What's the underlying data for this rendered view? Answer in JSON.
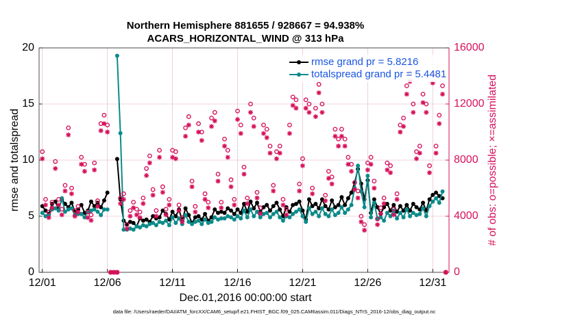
{
  "chart_data": {
    "type": "line",
    "title": "Northern Hemisphere 881655 / 928667 = 94.938%",
    "subtitle": "ACARS_HORIZONTAL_WIND @ 313 hPa",
    "xlabel": "Dec.01,2016 00:00:00 start",
    "ylabel": "rmse and totalspread",
    "y2label": "# of obs: o=possible; ×=assimilated",
    "footnote": "data file: /Users/raeder/DAI/ATM_forcXX/CAM6_setup/f.e21.FHIST_BGC.f09_025.CAM6assim.011/Diags_NTrS_2016-12/obs_diag_output.nc",
    "legend": "upper right",
    "grid": true,
    "xlim": [
      -0.25,
      31.25
    ],
    "xticks": [
      {
        "value": 0,
        "label": "12/01"
      },
      {
        "value": 5,
        "label": "12/06"
      },
      {
        "value": 10,
        "label": "12/11"
      },
      {
        "value": 15,
        "label": "12/16"
      },
      {
        "value": 20,
        "label": "12/21"
      },
      {
        "value": 25,
        "label": "12/26"
      },
      {
        "value": 30,
        "label": "12/31"
      }
    ],
    "ylim": [
      0,
      20
    ],
    "yticks": [
      0,
      5,
      10,
      15,
      20
    ],
    "y2lim": [
      0,
      16000
    ],
    "y2ticks": [
      0,
      4000,
      8000,
      12000,
      16000
    ],
    "x": [
      0,
      0.25,
      0.5,
      0.75,
      1,
      1.25,
      1.5,
      1.75,
      2,
      2.25,
      2.5,
      2.75,
      3,
      3.25,
      3.5,
      3.75,
      4,
      4.25,
      4.5,
      4.75,
      5,
      5.25,
      5.5,
      5.75,
      6,
      6.25,
      6.5,
      6.75,
      7,
      7.25,
      7.5,
      7.75,
      8,
      8.25,
      8.5,
      8.75,
      9,
      9.25,
      9.5,
      9.75,
      10,
      10.25,
      10.5,
      10.75,
      11,
      11.25,
      11.5,
      11.75,
      12,
      12.25,
      12.5,
      12.75,
      13,
      13.25,
      13.5,
      13.75,
      14,
      14.25,
      14.5,
      14.75,
      15,
      15.25,
      15.5,
      15.75,
      16,
      16.25,
      16.5,
      16.75,
      17,
      17.25,
      17.5,
      17.75,
      18,
      18.25,
      18.5,
      18.75,
      19,
      19.25,
      19.5,
      19.75,
      20,
      20.25,
      20.5,
      20.75,
      21,
      21.25,
      21.5,
      21.75,
      22,
      22.25,
      22.5,
      22.75,
      23,
      23.25,
      23.5,
      23.75,
      24,
      24.25,
      24.5,
      24.75,
      25,
      25.25,
      25.5,
      25.75,
      26,
      26.25,
      26.5,
      26.75,
      27,
      27.25,
      27.5,
      27.75,
      28,
      28.25,
      28.5,
      28.75,
      29,
      29.25,
      29.5,
      29.75,
      30,
      30.25,
      30.5,
      30.75,
      31
    ],
    "series": [
      {
        "name": "rmse grand pr = 5.8216",
        "color": "#000000",
        "marker": "dot",
        "values": [
          5.9,
          5.5,
          5.2,
          6.1,
          6.3,
          5.6,
          6.5,
          6.1,
          5.8,
          6.2,
          5.4,
          5.6,
          6.0,
          5.3,
          5.5,
          6.3,
          5.9,
          6.2,
          5.8,
          6.4,
          7.1,
          null,
          null,
          10.1,
          6.5,
          4.6,
          4.3,
          4.5,
          4.4,
          4.1,
          4.8,
          4.6,
          4.7,
          4.5,
          5.0,
          4.8,
          4.9,
          5.5,
          5.2,
          4.7,
          5.4,
          5.0,
          5.6,
          4.6,
          5.7,
          5.1,
          4.4,
          4.9,
          5.0,
          4.7,
          5.2,
          4.6,
          4.9,
          5.6,
          5.3,
          5.4,
          5.3,
          5.7,
          5.5,
          5.2,
          5.6,
          5.3,
          6.1,
          5.4,
          6.3,
          5.7,
          6.2,
          5.4,
          5.8,
          6.0,
          5.5,
          5.9,
          6.2,
          5.6,
          5.0,
          5.8,
          5.4,
          6.0,
          6.1,
          6.3,
          5.5,
          4.7,
          6.5,
          5.9,
          6.1,
          5.7,
          6.5,
          5.9,
          5.6,
          6.4,
          5.8,
          6.0,
          6.7,
          6.0,
          6.6,
          7.1,
          8.0,
          9.2,
          7.9,
          6.5,
          8.2,
          5.3,
          6.5,
          5.8,
          5.2,
          5.8,
          6.1,
          5.5,
          6.0,
          5.4,
          5.9,
          5.5,
          6.0,
          5.5,
          6.1,
          5.8,
          5.6,
          6.2,
          5.5,
          6.5,
          6.9,
          7.1,
          6.8,
          6.6,
          null
        ]
      },
      {
        "name": "totalspread grand pr = 5.4481",
        "color": "#0b8a8a",
        "marker": "dot",
        "values": [
          5.3,
          5.0,
          5.1,
          5.6,
          5.7,
          5.5,
          6.6,
          5.4,
          5.6,
          5.7,
          5.1,
          5.2,
          5.2,
          4.9,
          5.4,
          5.5,
          5.6,
          5.4,
          5.1,
          5.6,
          5.6,
          null,
          null,
          19.3,
          12.4,
          3.8,
          3.8,
          3.9,
          3.8,
          4.1,
          4.0,
          4.2,
          4.1,
          4.3,
          4.4,
          4.2,
          4.5,
          4.4,
          4.6,
          4.2,
          4.9,
          4.4,
          4.8,
          4.3,
          5.1,
          4.5,
          4.3,
          4.5,
          4.6,
          4.3,
          4.7,
          4.4,
          4.5,
          4.9,
          4.7,
          4.8,
          4.8,
          5.0,
          4.9,
          4.7,
          5.0,
          4.8,
          5.5,
          4.9,
          5.6,
          5.0,
          5.4,
          4.9,
          5.2,
          5.3,
          4.9,
          5.2,
          5.4,
          4.9,
          4.6,
          5.0,
          4.9,
          5.2,
          5.4,
          5.6,
          5.0,
          4.5,
          5.7,
          5.2,
          5.4,
          5.0,
          5.7,
          5.2,
          5.0,
          5.6,
          5.1,
          5.3,
          5.8,
          5.3,
          5.6,
          6.0,
          7.5,
          9.5,
          7.2,
          5.8,
          8.6,
          4.9,
          6.2,
          4.8,
          4.9,
          4.6,
          5.3,
          5.0,
          5.5,
          4.8,
          5.3,
          4.9,
          5.6,
          5.0,
          5.3,
          5.1,
          5.2,
          5.7,
          5.0,
          5.9,
          6.3,
          6.6,
          6.2,
          7.2,
          null
        ]
      },
      {
        "axis": "y2",
        "color": "#d6105a",
        "marker": "o",
        "values": [
          8600,
          5200,
          4300,
          5000,
          7900,
          5200,
          4500,
          6200,
          10300,
          6000,
          4400,
          4700,
          8200,
          7700,
          4300,
          4100,
          7800,
          5100,
          10600,
          11200,
          10500,
          0,
          0,
          0,
          5300,
          5600,
          3400,
          4400,
          5000,
          4500,
          4300,
          5300,
          7400,
          8300,
          5900,
          4400,
          8700,
          6100,
          4500,
          5200,
          8700,
          8600,
          4800,
          3900,
          10300,
          11100,
          6500,
          4700,
          10600,
          10000,
          5600,
          5000,
          11000,
          11400,
          7000,
          5000,
          9500,
          8700,
          6600,
          5200,
          11500,
          10500,
          7500,
          5300,
          12000,
          11000,
          5700,
          4600,
          10500,
          10200,
          9000,
          6200,
          8600,
          9000,
          5200,
          4500,
          10500,
          12500,
          12300,
          6300,
          8100,
          12300,
          12000,
          6000,
          11700,
          13400,
          12000,
          5500,
          7200,
          6800,
          10200,
          9500,
          10200,
          9500,
          8200,
          7700,
          6400,
          5800,
          4000,
          3400,
          7800,
          8200,
          6500,
          3800,
          4600,
          5300,
          7800,
          7600,
          4500,
          5600,
          10500,
          11000,
          13300,
          14200,
          12000,
          8600,
          9000,
          12700,
          12000,
          7600,
          14100,
          9000,
          11200,
          13300,
          0
        ]
      },
      {
        "axis": "y2",
        "color": "#d6105a",
        "marker": "star",
        "values": [
          8100,
          4800,
          3900,
          4600,
          7400,
          4800,
          4100,
          5800,
          9800,
          5600,
          4000,
          4300,
          7700,
          7200,
          3900,
          3700,
          7300,
          4700,
          10100,
          10600,
          10000,
          0,
          0,
          0,
          4900,
          5200,
          3100,
          4000,
          4600,
          4100,
          3900,
          4900,
          6900,
          7800,
          5500,
          4000,
          8200,
          5700,
          4100,
          4800,
          8200,
          8100,
          4400,
          3600,
          9700,
          10500,
          6100,
          4300,
          10000,
          9400,
          5200,
          4600,
          10400,
          10800,
          6500,
          4600,
          9000,
          8200,
          6100,
          4800,
          10900,
          9900,
          7000,
          4900,
          11400,
          10400,
          5300,
          4200,
          9900,
          9600,
          8500,
          5800,
          8100,
          8500,
          4800,
          4100,
          9900,
          11900,
          11700,
          5800,
          7600,
          11700,
          11400,
          5600,
          11100,
          12800,
          11400,
          5100,
          6700,
          6300,
          9700,
          9000,
          9700,
          9000,
          7700,
          7200,
          5900,
          5300,
          3600,
          3000,
          7300,
          7700,
          6000,
          3400,
          4200,
          4900,
          7300,
          7100,
          4100,
          5200,
          10000,
          10400,
          12700,
          13600,
          11400,
          8100,
          8500,
          12100,
          11400,
          7100,
          13500,
          8500,
          10600,
          12700,
          0
        ]
      }
    ]
  }
}
